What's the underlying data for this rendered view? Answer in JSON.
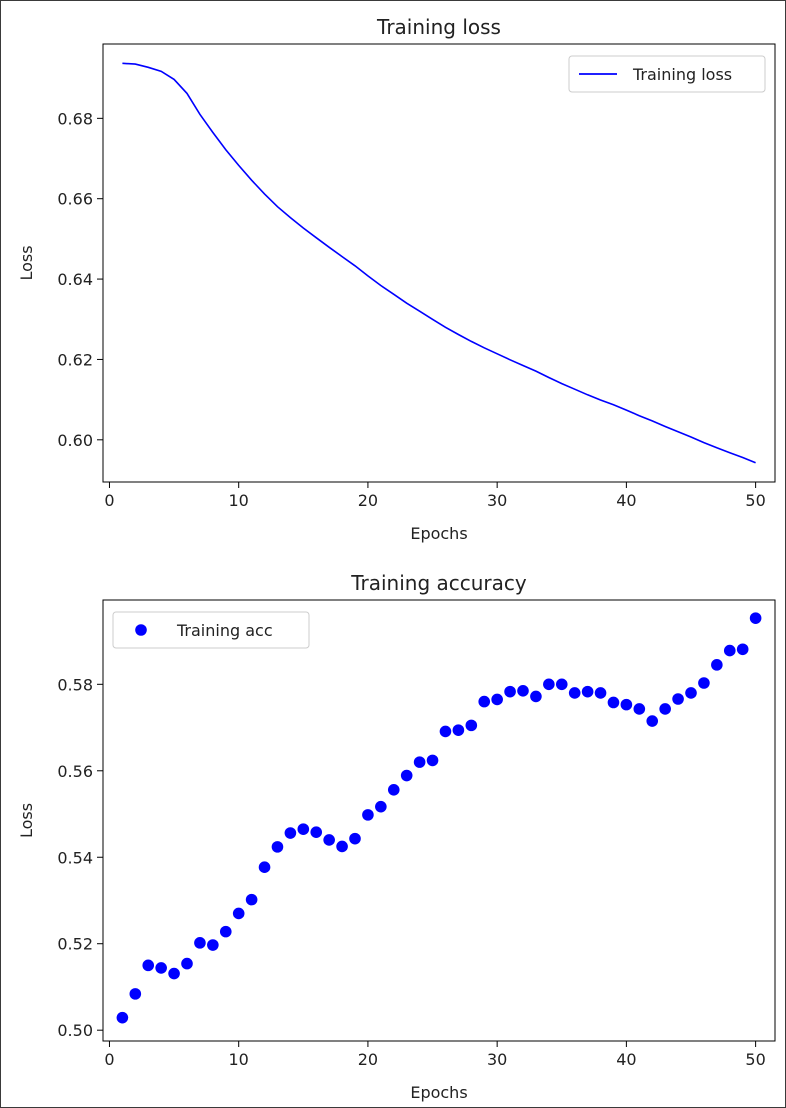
{
  "chart_data": [
    {
      "type": "line",
      "title": "Training loss",
      "xlabel": "Epochs",
      "ylabel": "Loss",
      "xlim": [
        -0.5,
        51.5
      ],
      "ylim": [
        0.5895,
        0.6985
      ],
      "xticks": [
        0,
        10,
        20,
        30,
        40,
        50
      ],
      "yticks": [
        0.6,
        0.62,
        0.64,
        0.66,
        0.68
      ],
      "ytick_labels": [
        "0.60",
        "0.62",
        "0.64",
        "0.66",
        "0.68"
      ],
      "legend": {
        "position": "top-right"
      },
      "series": [
        {
          "name": "Training loss",
          "color": "#0000ff",
          "x": [
            1,
            2,
            3,
            4,
            5,
            6,
            7,
            8,
            9,
            10,
            11,
            12,
            13,
            14,
            15,
            16,
            17,
            18,
            19,
            20,
            21,
            22,
            23,
            24,
            25,
            26,
            27,
            28,
            29,
            30,
            31,
            32,
            33,
            34,
            35,
            36,
            37,
            38,
            39,
            40,
            41,
            42,
            43,
            44,
            45,
            46,
            47,
            48,
            49,
            50
          ],
          "y": [
            0.6937,
            0.6935,
            0.6927,
            0.6917,
            0.6897,
            0.6862,
            0.681,
            0.6765,
            0.6722,
            0.6683,
            0.6646,
            0.6612,
            0.658,
            0.6553,
            0.6527,
            0.6503,
            0.6479,
            0.6456,
            0.6433,
            0.6408,
            0.6384,
            0.6362,
            0.634,
            0.632,
            0.63,
            0.628,
            0.6262,
            0.6245,
            0.6229,
            0.6214,
            0.6199,
            0.6185,
            0.6171,
            0.6155,
            0.614,
            0.6126,
            0.6112,
            0.6099,
            0.6087,
            0.6074,
            0.606,
            0.6047,
            0.6033,
            0.602,
            0.6007,
            0.5993,
            0.598,
            0.5968,
            0.5956,
            0.5943
          ]
        }
      ]
    },
    {
      "type": "scatter",
      "title": "Training accuracy",
      "xlabel": "Epochs",
      "ylabel": "Loss",
      "xlim": [
        -0.5,
        51.5
      ],
      "ylim": [
        0.4975,
        0.5995
      ],
      "xticks": [
        0,
        10,
        20,
        30,
        40,
        50
      ],
      "yticks": [
        0.5,
        0.52,
        0.54,
        0.56,
        0.58
      ],
      "ytick_labels": [
        "0.50",
        "0.52",
        "0.54",
        "0.56",
        "0.58"
      ],
      "legend": {
        "position": "top-left"
      },
      "series": [
        {
          "name": "Training acc",
          "color": "#0000ff",
          "x": [
            1,
            2,
            3,
            4,
            5,
            6,
            7,
            8,
            9,
            10,
            11,
            12,
            13,
            14,
            15,
            16,
            17,
            18,
            19,
            20,
            21,
            22,
            23,
            24,
            25,
            26,
            27,
            28,
            29,
            30,
            31,
            32,
            33,
            34,
            35,
            36,
            37,
            38,
            39,
            40,
            41,
            42,
            43,
            44,
            45,
            46,
            47,
            48,
            49,
            50
          ],
          "y": [
            0.5029,
            0.5084,
            0.515,
            0.5144,
            0.5131,
            0.5154,
            0.5202,
            0.5197,
            0.5228,
            0.527,
            0.5302,
            0.5377,
            0.5424,
            0.5456,
            0.5465,
            0.5458,
            0.544,
            0.5425,
            0.5443,
            0.5498,
            0.5517,
            0.5556,
            0.5589,
            0.562,
            0.5624,
            0.5691,
            0.5694,
            0.5705,
            0.576,
            0.5765,
            0.5783,
            0.5785,
            0.5772,
            0.58,
            0.58,
            0.578,
            0.5783,
            0.578,
            0.5758,
            0.5753,
            0.5743,
            0.5715,
            0.5743,
            0.5766,
            0.578,
            0.5803,
            0.5845,
            0.5878,
            0.5881,
            0.5953
          ]
        }
      ]
    }
  ]
}
